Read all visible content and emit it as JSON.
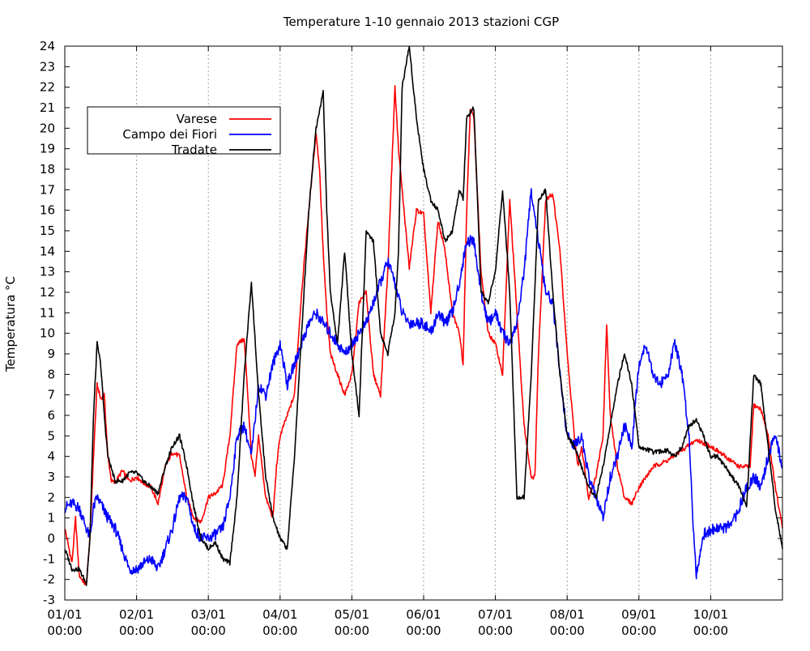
{
  "chart_data": {
    "type": "line",
    "title": "Temperature 1-10 gennaio 2013 stazioni CGP",
    "xlabel": "",
    "ylabel": "Temperatura °C",
    "xlim": [
      0,
      10
    ],
    "ylim": [
      -3,
      24
    ],
    "y_ticks": [
      -3,
      -2,
      -1,
      0,
      1,
      2,
      3,
      4,
      5,
      6,
      7,
      8,
      9,
      10,
      11,
      12,
      13,
      14,
      15,
      16,
      17,
      18,
      19,
      20,
      21,
      22,
      23,
      24
    ],
    "x_ticks": [
      {
        "x": 0,
        "date": "01/01",
        "time": "00:00"
      },
      {
        "x": 1,
        "date": "02/01",
        "time": "00:00"
      },
      {
        "x": 2,
        "date": "03/01",
        "time": "00:00"
      },
      {
        "x": 3,
        "date": "04/01",
        "time": "00:00"
      },
      {
        "x": 4,
        "date": "05/01",
        "time": "00:00"
      },
      {
        "x": 5,
        "date": "06/01",
        "time": "00:00"
      },
      {
        "x": 6,
        "date": "07/01",
        "time": "00:00"
      },
      {
        "x": 7,
        "date": "08/01",
        "time": "00:00"
      },
      {
        "x": 8,
        "date": "09/01",
        "time": "00:00"
      },
      {
        "x": 9,
        "date": "10/01",
        "time": "00:00"
      }
    ],
    "grid": "vertical dotted at each day",
    "legend_position": "top-left",
    "series": [
      {
        "name": "Varese",
        "color": "#ff0000",
        "x": [
          0,
          0.1,
          0.15,
          0.2,
          0.3,
          0.35,
          0.4,
          0.45,
          0.5,
          0.55,
          0.6,
          0.65,
          0.7,
          0.8,
          0.9,
          1.0,
          1.1,
          1.2,
          1.3,
          1.4,
          1.5,
          1.6,
          1.7,
          1.8,
          1.9,
          2.0,
          2.1,
          2.2,
          2.3,
          2.4,
          2.5,
          2.55,
          2.6,
          2.65,
          2.7,
          2.8,
          2.9,
          2.95,
          3.0,
          3.1,
          3.2,
          3.3,
          3.4,
          3.5,
          3.55,
          3.6,
          3.65,
          3.7,
          3.8,
          3.9,
          4.0,
          4.1,
          4.2,
          4.3,
          4.4,
          4.5,
          4.55,
          4.6,
          4.65,
          4.7,
          4.8,
          4.9,
          5.0,
          5.1,
          5.2,
          5.3,
          5.4,
          5.5,
          5.55,
          5.6,
          5.65,
          5.7,
          5.8,
          5.9,
          6.0,
          6.1,
          6.2,
          6.3,
          6.4,
          6.5,
          6.55,
          6.6,
          6.7,
          6.8,
          6.9,
          7.0,
          7.1,
          7.15,
          7.2,
          7.3,
          7.4,
          7.5,
          7.55,
          7.6,
          7.7,
          7.8,
          7.9,
          8.0,
          8.2,
          8.4,
          8.6,
          8.8,
          9.0,
          9.2,
          9.4,
          9.5,
          9.55,
          9.6,
          9.7,
          9.8,
          9.9,
          10.0
        ],
        "values": [
          0.5,
          -1.2,
          1.0,
          -1.8,
          -2.3,
          0.0,
          4.0,
          7.5,
          6.8,
          7.0,
          4.0,
          2.8,
          2.7,
          3.3,
          2.8,
          3.0,
          2.7,
          2.5,
          1.7,
          3.5,
          4.2,
          4.0,
          2.0,
          1.0,
          0.8,
          2.0,
          2.2,
          2.6,
          5.0,
          9.5,
          9.7,
          7.0,
          4.0,
          3.0,
          5.0,
          2.0,
          1.0,
          3.5,
          5.0,
          6.0,
          7.0,
          12.0,
          16.0,
          19.8,
          18.0,
          14.0,
          11.0,
          9.0,
          8.0,
          7.0,
          8.0,
          11.5,
          12.0,
          8.0,
          7.0,
          13.0,
          17.5,
          22.0,
          19.0,
          17.0,
          13.2,
          16.0,
          15.8,
          11.0,
          15.5,
          14.0,
          11.0,
          10.0,
          8.5,
          16.0,
          21.0,
          20.5,
          13.0,
          10.0,
          9.5,
          8.0,
          16.5,
          11.0,
          5.5,
          3.0,
          3.0,
          9.0,
          16.5,
          16.8,
          14.0,
          9.0,
          5.0,
          3.5,
          4.5,
          2.0,
          3.0,
          5.0,
          10.5,
          6.0,
          3.5,
          2.0,
          1.7,
          2.5,
          3.5,
          3.8,
          4.3,
          4.8,
          4.5,
          4.0,
          3.5,
          3.5,
          3.5,
          6.5,
          6.3,
          5.0,
          2.5,
          0.5
        ],
        "max": 22.0,
        "min": -2.3
      },
      {
        "name": "Campo dei Fiori",
        "color": "#0000ff",
        "x": [
          0,
          0.1,
          0.2,
          0.3,
          0.35,
          0.4,
          0.45,
          0.5,
          0.6,
          0.7,
          0.8,
          0.9,
          1.0,
          1.1,
          1.2,
          1.3,
          1.4,
          1.5,
          1.6,
          1.7,
          1.8,
          1.9,
          2.0,
          2.1,
          2.2,
          2.3,
          2.4,
          2.5,
          2.6,
          2.7,
          2.8,
          2.9,
          3.0,
          3.1,
          3.2,
          3.3,
          3.4,
          3.5,
          3.6,
          3.7,
          3.8,
          3.9,
          4.0,
          4.1,
          4.2,
          4.3,
          4.4,
          4.5,
          4.6,
          4.7,
          4.8,
          4.9,
          5.0,
          5.1,
          5.2,
          5.3,
          5.4,
          5.5,
          5.6,
          5.7,
          5.8,
          5.9,
          6.0,
          6.1,
          6.2,
          6.3,
          6.4,
          6.5,
          6.6,
          6.7,
          6.8,
          6.9,
          7.0,
          7.1,
          7.2,
          7.3,
          7.4,
          7.5,
          7.6,
          7.7,
          7.8,
          7.9,
          8.0,
          8.1,
          8.2,
          8.3,
          8.4,
          8.5,
          8.6,
          8.7,
          8.75,
          8.8,
          8.9,
          9.0,
          9.1,
          9.2,
          9.3,
          9.4,
          9.5,
          9.6,
          9.7,
          9.8,
          9.9,
          10.0
        ],
        "values": [
          1.5,
          1.7,
          1.5,
          0.5,
          0.0,
          1.5,
          2.0,
          1.7,
          1.0,
          0.5,
          -0.5,
          -1.5,
          -1.5,
          -1.2,
          -1.0,
          -1.5,
          -0.5,
          0.5,
          2.0,
          2.0,
          0.5,
          0.0,
          0.0,
          0.2,
          0.5,
          2.0,
          5.0,
          5.5,
          4.0,
          7.5,
          7.0,
          8.5,
          9.5,
          7.5,
          8.5,
          9.5,
          10.5,
          11.0,
          10.5,
          10.0,
          9.5,
          9.0,
          9.5,
          10.0,
          10.5,
          11.5,
          12.5,
          13.5,
          12.5,
          11.0,
          10.5,
          10.5,
          10.5,
          10.0,
          11.0,
          10.5,
          11.0,
          12.5,
          14.5,
          14.5,
          12.0,
          10.5,
          11.0,
          10.0,
          9.5,
          10.5,
          13.0,
          17.0,
          14.5,
          12.0,
          11.5,
          8.0,
          5.0,
          4.5,
          5.0,
          3.0,
          2.0,
          1.0,
          3.0,
          4.0,
          5.5,
          4.5,
          8.5,
          9.5,
          8.0,
          7.5,
          8.0,
          9.5,
          8.0,
          5.0,
          1.0,
          -1.7,
          0.2,
          0.4,
          0.5,
          0.5,
          0.7,
          1.5,
          2.5,
          3.0,
          2.5,
          4.0,
          5.0,
          3.5
        ],
        "max": 17.5,
        "min": -1.8
      },
      {
        "name": "Tradate",
        "color": "#000000",
        "x": [
          0,
          0.1,
          0.2,
          0.3,
          0.35,
          0.4,
          0.45,
          0.5,
          0.55,
          0.6,
          0.7,
          0.8,
          0.9,
          1.0,
          1.1,
          1.2,
          1.3,
          1.4,
          1.5,
          1.6,
          1.7,
          1.8,
          1.9,
          2.0,
          2.1,
          2.2,
          2.3,
          2.4,
          2.5,
          2.6,
          2.7,
          2.8,
          2.9,
          3.0,
          3.1,
          3.2,
          3.3,
          3.4,
          3.5,
          3.6,
          3.65,
          3.7,
          3.8,
          3.9,
          4.0,
          4.1,
          4.2,
          4.3,
          4.4,
          4.5,
          4.6,
          4.65,
          4.7,
          4.8,
          4.9,
          5.0,
          5.1,
          5.2,
          5.3,
          5.4,
          5.5,
          5.55,
          5.6,
          5.7,
          5.8,
          5.9,
          6.0,
          6.1,
          6.2,
          6.3,
          6.4,
          6.5,
          6.6,
          6.7,
          6.8,
          6.9,
          7.0,
          7.1,
          7.2,
          7.3,
          7.4,
          7.5,
          7.6,
          7.7,
          7.8,
          7.9,
          8.0,
          8.2,
          8.4,
          8.5,
          8.6,
          8.7,
          8.8,
          8.9,
          9.0,
          9.1,
          9.2,
          9.3,
          9.4,
          9.5,
          9.6,
          9.7,
          9.8,
          9.9,
          10.0
        ],
        "values": [
          -0.5,
          -1.5,
          -1.5,
          -2.2,
          0.0,
          6.0,
          9.5,
          8.5,
          6.0,
          4.0,
          2.8,
          2.8,
          3.2,
          3.2,
          2.8,
          2.5,
          2.2,
          3.5,
          4.5,
          5.0,
          3.5,
          1.5,
          0.0,
          -0.5,
          -0.2,
          -1.0,
          -1.2,
          2.0,
          8.0,
          12.5,
          7.0,
          3.0,
          1.0,
          0.0,
          -0.5,
          4.0,
          10.0,
          16.0,
          20.0,
          21.8,
          16.0,
          12.0,
          9.5,
          14.0,
          9.0,
          6.0,
          15.0,
          14.5,
          10.0,
          9.0,
          11.0,
          14.0,
          22.0,
          24.0,
          20.5,
          18.0,
          16.5,
          16.0,
          14.5,
          15.0,
          17.0,
          16.5,
          20.5,
          21.0,
          12.0,
          11.5,
          13.0,
          17.0,
          12.0,
          2.0,
          2.0,
          8.0,
          16.5,
          17.0,
          12.0,
          8.0,
          5.0,
          4.5,
          3.5,
          2.5,
          2.0,
          3.5,
          5.5,
          7.5,
          9.0,
          7.5,
          4.5,
          4.2,
          4.3,
          4.0,
          4.5,
          5.5,
          5.8,
          5.0,
          4.0,
          4.0,
          3.5,
          3.0,
          2.5,
          1.5,
          8.0,
          7.5,
          4.5,
          1.5,
          -0.5
        ],
        "max": 24.0,
        "min": -2.2
      }
    ]
  }
}
